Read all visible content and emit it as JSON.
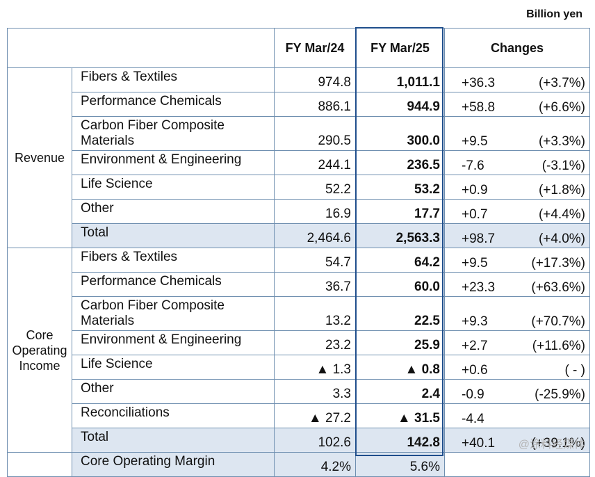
{
  "unit_label": "Billion yen",
  "headers": {
    "col1": "FY Mar/24",
    "col2": "FY Mar/25",
    "changes": "Changes"
  },
  "groups": {
    "revenue": "Revenue",
    "core_operating_income": "Core Operating Income"
  },
  "revenue_rows": [
    {
      "item": "Fibers & Textiles",
      "fy24": "974.8",
      "fy25": "1,011.1",
      "chg": "+36.3",
      "pct": "(+3.7%)"
    },
    {
      "item": "Performance Chemicals",
      "fy24": "886.1",
      "fy25": "944.9",
      "chg": "+58.8",
      "pct": "(+6.6%)"
    },
    {
      "item": "Carbon Fiber Composite Materials",
      "fy24": "290.5",
      "fy25": "300.0",
      "chg": "+9.5",
      "pct": "(+3.3%)"
    },
    {
      "item": "Environment & Engineering",
      "fy24": "244.1",
      "fy25": "236.5",
      "chg": "-7.6",
      "pct": "(-3.1%)"
    },
    {
      "item": "Life Science",
      "fy24": "52.2",
      "fy25": "53.2",
      "chg": "+0.9",
      "pct": "(+1.8%)"
    },
    {
      "item": "Other",
      "fy24": "16.9",
      "fy25": "17.7",
      "chg": "+0.7",
      "pct": "(+4.4%)"
    },
    {
      "item": "Total",
      "fy24": "2,464.6",
      "fy25": "2,563.3",
      "chg": "+98.7",
      "pct": "(+4.0%)"
    }
  ],
  "coi_rows": [
    {
      "item": "Fibers & Textiles",
      "fy24": "54.7",
      "fy25": "64.2",
      "chg": "+9.5",
      "pct": "(+17.3%)"
    },
    {
      "item": "Performance Chemicals",
      "fy24": "36.7",
      "fy25": "60.0",
      "chg": "+23.3",
      "pct": "(+63.6%)"
    },
    {
      "item": "Carbon Fiber Composite Materials",
      "fy24": "13.2",
      "fy25": "22.5",
      "chg": "+9.3",
      "pct": "(+70.7%)"
    },
    {
      "item": "Environment & Engineering",
      "fy24": "23.2",
      "fy25": "25.9",
      "chg": "+2.7",
      "pct": "(+11.6%)"
    },
    {
      "item": "Life Science",
      "fy24": "▲ 1.3",
      "fy25": "▲ 0.8",
      "chg": "+0.6",
      "pct": "( - )"
    },
    {
      "item": "Other",
      "fy24": "3.3",
      "fy25": "2.4",
      "chg": "-0.9",
      "pct": "(-25.9%)"
    },
    {
      "item": "Reconciliations",
      "fy24": "▲ 27.2",
      "fy25": "▲ 31.5",
      "chg": "-4.4",
      "pct": ""
    },
    {
      "item": "Total",
      "fy24": "102.6",
      "fy25": "142.8",
      "chg": "+40.1",
      "pct": "(+39.1%)"
    }
  ],
  "margin_row": {
    "item": "Core Operating Margin",
    "fy24": "4.2%",
    "fy25": "5.6%",
    "chg": "",
    "pct": ""
  },
  "watermark": "@涂料经媒体"
}
